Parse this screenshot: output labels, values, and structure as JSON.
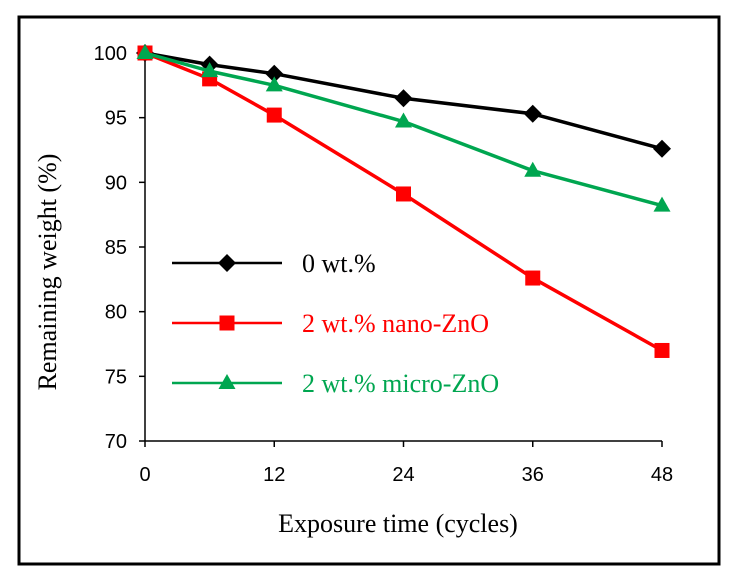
{
  "chart_data": {
    "type": "line",
    "xlabel": "Exposure  time (cycles)",
    "ylabel": "Remaining weight (%)",
    "xlim": [
      0,
      48
    ],
    "ylim": [
      70,
      100
    ],
    "x_ticks": [
      "0",
      "12",
      "24",
      "36",
      "48"
    ],
    "y_ticks": [
      "70",
      "75",
      "80",
      "85",
      "90",
      "95",
      "100"
    ],
    "grid": false,
    "legend_position": "left",
    "series": [
      {
        "name": "0 wt.%",
        "color": "#000000",
        "marker": "diamond",
        "points": [
          [
            0,
            100
          ],
          [
            6,
            99.1
          ],
          [
            12,
            98.4
          ],
          [
            24,
            96.5
          ],
          [
            36,
            95.3
          ],
          [
            48,
            92.6
          ]
        ]
      },
      {
        "name": "2 wt.% nano-ZnO",
        "color": "#ff0000",
        "marker": "square",
        "points": [
          [
            0,
            100
          ],
          [
            6,
            98.0
          ],
          [
            12,
            95.2
          ],
          [
            24,
            89.1
          ],
          [
            36,
            82.6
          ],
          [
            48,
            77.0
          ]
        ]
      },
      {
        "name": "2 wt.% micro-ZnO",
        "color": "#00a650",
        "marker": "triangle",
        "points": [
          [
            0,
            100
          ],
          [
            6,
            98.6
          ],
          [
            12,
            97.5
          ],
          [
            24,
            94.7
          ],
          [
            36,
            90.9
          ],
          [
            48,
            88.2
          ]
        ]
      }
    ]
  }
}
